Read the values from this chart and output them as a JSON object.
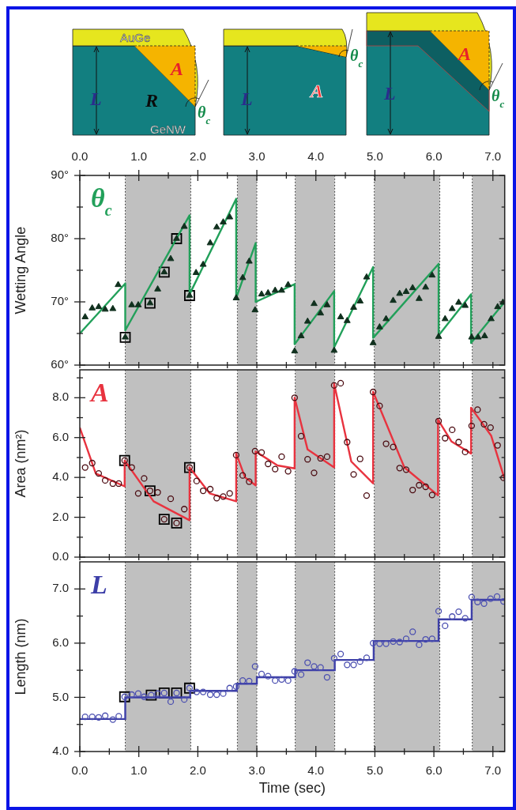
{
  "chart_data": [
    {
      "type": "other",
      "annotations": [
        "AuGe",
        "A",
        "R",
        "L",
        "GeNW",
        "θ$_{c}$",
        "A",
        "L",
        "θ$_{c}$",
        "A",
        "L",
        "θ$_{c}$"
      ]
    },
    {
      "type": "scatter",
      "ylabel": "Wetting Angle",
      "annotations": [
        "θ$_{c}$"
      ],
      "tick_labels": "y",
      "xlim": [
        0,
        7.2
      ],
      "xticks": [
        {
          "value": 0,
          "label": null
        },
        {
          "value": 0.5,
          "label": null
        },
        {
          "value": 1,
          "label": null
        },
        {
          "value": 1.5,
          "label": null
        },
        {
          "value": 2,
          "label": null
        },
        {
          "value": 2.5,
          "label": null
        },
        {
          "value": 3,
          "label": null
        },
        {
          "value": 3.5,
          "label": null
        },
        {
          "value": 4,
          "label": null
        },
        {
          "value": 4.5,
          "label": null
        },
        {
          "value": 5,
          "label": null
        },
        {
          "value": 5.5,
          "label": null
        },
        {
          "value": 6,
          "label": null
        },
        {
          "value": 6.5,
          "label": null
        },
        {
          "value": 7,
          "label": null
        }
      ],
      "x2lim": [
        0,
        7.2
      ],
      "x2ticks": [
        {
          "value": 0,
          "label": "0.0"
        },
        {
          "value": 0.5,
          "label": null
        },
        {
          "value": 1,
          "label": "1.0"
        },
        {
          "value": 1.5,
          "label": null
        },
        {
          "value": 2,
          "label": "2.0"
        },
        {
          "value": 2.5,
          "label": null
        },
        {
          "value": 3,
          "label": "3.0"
        },
        {
          "value": 3.5,
          "label": null
        },
        {
          "value": 4,
          "label": "4.0"
        },
        {
          "value": 4.5,
          "label": null
        },
        {
          "value": 5,
          "label": "5.0"
        },
        {
          "value": 5.5,
          "label": null
        },
        {
          "value": 6,
          "label": "6.0"
        },
        {
          "value": 6.5,
          "label": null
        },
        {
          "value": 7,
          "label": "7.0"
        }
      ],
      "ylim": [
        60,
        90
      ],
      "yticks": [
        {
          "value": 60,
          "label": "60°"
        },
        {
          "value": 65,
          "label": null
        },
        {
          "value": 70,
          "label": "70°"
        },
        {
          "value": 75,
          "label": null
        },
        {
          "value": 80,
          "label": "80°"
        },
        {
          "value": 85,
          "label": null
        },
        {
          "value": 90,
          "label": "90°"
        }
      ],
      "bands": [
        {
          "axis": "x",
          "from": 0.77,
          "to": 1.88,
          "color": "#c0c0c0"
        },
        {
          "axis": "x",
          "from": 2.67,
          "to": 3.0,
          "color": "#c0c0c0"
        },
        {
          "axis": "x",
          "from": 3.65,
          "to": 4.32,
          "color": "#c0c0c0"
        },
        {
          "axis": "x",
          "from": 4.99,
          "to": 6.1,
          "color": "#c0c0c0"
        },
        {
          "axis": "x",
          "from": 6.65,
          "to": 7.2,
          "color": "#c0c0c0"
        }
      ],
      "series": [
        {
          "type": "scatter",
          "marker": "triangle",
          "color": "#10301e",
          "x": [
            0.09,
            0.21,
            0.32,
            0.43,
            0.56,
            0.65,
            0.77,
            0.88,
            0.99,
            1.19,
            1.32,
            1.43,
            1.54,
            1.64,
            1.77,
            1.86,
            1.97,
            2.09,
            2.21,
            2.32,
            2.43,
            2.54,
            2.65,
            2.76,
            2.87,
            2.97,
            3.08,
            3.19,
            3.31,
            3.42,
            3.53,
            3.64,
            3.75,
            3.86,
            3.97,
            4.08,
            4.19,
            4.31,
            4.42,
            4.53,
            4.64,
            4.75,
            4.86,
            4.97,
            5.08,
            5.19,
            5.31,
            5.42,
            5.53,
            5.64,
            5.75,
            5.86,
            5.97,
            6.08,
            6.19,
            6.31,
            6.42,
            6.53,
            6.64,
            6.75,
            6.86,
            6.97,
            7.08,
            7.17
          ],
          "values": [
            67.6,
            69.0,
            69.2,
            68.8,
            68.9,
            72.7,
            64.4,
            69.5,
            69.5,
            69.8,
            72.0,
            74.7,
            76.8,
            80.0,
            81.9,
            71.0,
            74.6,
            75.9,
            79.3,
            81.8,
            82.6,
            83.4,
            70.6,
            73.8,
            76.4,
            68.7,
            71.2,
            71.4,
            71.8,
            71.8,
            72.7,
            62.2,
            64.6,
            66.9,
            69.7,
            68.2,
            69.5,
            62.3,
            67.6,
            67.0,
            69.1,
            70.1,
            73.9,
            63.5,
            66.0,
            67.3,
            70.2,
            71.3,
            71.6,
            72.2,
            70.5,
            72.3,
            74.2,
            64.5,
            67.3,
            68.9,
            69.9,
            69.4,
            64.4,
            64.4,
            64.6,
            67.3,
            69.2,
            69.9
          ]
        },
        {
          "type": "line",
          "marker": "none",
          "color": "#22a05a",
          "x": [
            0,
            0.77,
            0.77,
            1.86,
            1.86,
            2.65,
            2.65,
            2.98,
            2.98,
            3.64,
            3.64,
            4.31,
            4.31,
            4.97,
            4.97,
            6.08,
            6.08,
            6.63,
            6.63,
            7.2
          ],
          "values": [
            65.0,
            72.9,
            65.5,
            83.7,
            71.2,
            86.3,
            70.6,
            79.3,
            70.0,
            72.8,
            63.3,
            71.7,
            62.8,
            75.5,
            64.3,
            76.0,
            64.7,
            71.2,
            63.5,
            70.0
          ]
        },
        {
          "type": "scatter",
          "marker": "square",
          "color": "#000000",
          "x": [
            0.77,
            1.19,
            1.43,
            1.64,
            1.86
          ],
          "values": [
            64.4,
            69.8,
            74.7,
            80.0,
            71.0
          ]
        }
      ]
    },
    {
      "type": "scatter",
      "ylabel": "Area (nm²)",
      "annotations": [
        "A"
      ],
      "tick_labels": "y",
      "xlim": [
        0,
        7.2
      ],
      "xticks": [
        {
          "value": 0,
          "label": null
        },
        {
          "value": 0.5,
          "label": null
        },
        {
          "value": 1,
          "label": null
        },
        {
          "value": 1.5,
          "label": null
        },
        {
          "value": 2,
          "label": null
        },
        {
          "value": 2.5,
          "label": null
        },
        {
          "value": 3,
          "label": null
        },
        {
          "value": 3.5,
          "label": null
        },
        {
          "value": 4,
          "label": null
        },
        {
          "value": 4.5,
          "label": null
        },
        {
          "value": 5,
          "label": null
        },
        {
          "value": 5.5,
          "label": null
        },
        {
          "value": 6,
          "label": null
        },
        {
          "value": 6.5,
          "label": null
        },
        {
          "value": 7,
          "label": null
        }
      ],
      "ylim": [
        0,
        9.4
      ],
      "yticks": [
        {
          "value": 0,
          "label": "0.0"
        },
        {
          "value": 1,
          "label": null
        },
        {
          "value": 2,
          "label": "2.0"
        },
        {
          "value": 3,
          "label": null
        },
        {
          "value": 4,
          "label": "4.0"
        },
        {
          "value": 5,
          "label": null
        },
        {
          "value": 6,
          "label": "6.0"
        },
        {
          "value": 7,
          "label": null
        },
        {
          "value": 8,
          "label": "8.0"
        },
        {
          "value": 9,
          "label": null
        }
      ],
      "bands": [
        {
          "axis": "x",
          "from": 0.77,
          "to": 1.88,
          "color": "#c0c0c0"
        },
        {
          "axis": "x",
          "from": 2.67,
          "to": 3.0,
          "color": "#c0c0c0"
        },
        {
          "axis": "x",
          "from": 3.65,
          "to": 4.32,
          "color": "#c0c0c0"
        },
        {
          "axis": "x",
          "from": 4.99,
          "to": 6.1,
          "color": "#c0c0c0"
        },
        {
          "axis": "x",
          "from": 6.65,
          "to": 7.2,
          "color": "#c0c0c0"
        }
      ],
      "series": [
        {
          "type": "scatter",
          "marker": "circle",
          "color": "#4a0a10",
          "x": [
            0.09,
            0.21,
            0.32,
            0.43,
            0.56,
            0.66,
            0.76,
            0.88,
            0.99,
            1.09,
            1.19,
            1.32,
            1.43,
            1.54,
            1.64,
            1.77,
            1.86,
            1.98,
            2.09,
            2.21,
            2.32,
            2.43,
            2.54,
            2.65,
            2.76,
            2.87,
            2.97,
            3.08,
            3.19,
            3.31,
            3.42,
            3.53,
            3.64,
            3.75,
            3.86,
            3.97,
            4.08,
            4.19,
            4.31,
            4.42,
            4.53,
            4.64,
            4.75,
            4.86,
            4.97,
            5.08,
            5.19,
            5.31,
            5.42,
            5.53,
            5.64,
            5.75,
            5.86,
            5.97,
            6.08,
            6.19,
            6.31,
            6.42,
            6.53,
            6.64,
            6.74,
            6.85,
            6.96,
            7.08,
            7.18
          ],
          "values": [
            4.5,
            4.72,
            4.2,
            3.85,
            3.69,
            3.69,
            4.85,
            4.5,
            3.2,
            3.95,
            3.33,
            3.25,
            1.9,
            2.93,
            1.71,
            2.41,
            4.5,
            3.82,
            3.33,
            3.41,
            2.96,
            3.04,
            3.2,
            5.12,
            4.1,
            3.79,
            5.32,
            5.25,
            4.68,
            4.42,
            5.04,
            4.31,
            8.0,
            6.07,
            4.91,
            4.23,
            4.96,
            5.04,
            8.62,
            8.73,
            5.77,
            4.15,
            4.93,
            3.09,
            8.29,
            7.59,
            5.69,
            5.53,
            4.47,
            4.39,
            3.37,
            3.61,
            3.53,
            3.12,
            6.83,
            5.97,
            6.39,
            5.77,
            5.28,
            6.59,
            7.4,
            6.67,
            6.5,
            5.61,
            3.98
          ]
        },
        {
          "type": "line",
          "marker": "none",
          "color": "#e8333f",
          "x": [
            0,
            0.27,
            0.76,
            0.76,
            1.25,
            1.86,
            1.86,
            2.2,
            2.65,
            2.65,
            2.8,
            2.98,
            2.98,
            3.35,
            3.64,
            3.64,
            3.86,
            4.31,
            4.31,
            4.6,
            4.97,
            4.97,
            5.5,
            6.07,
            6.07,
            6.3,
            6.63,
            6.63,
            6.97,
            7.2
          ],
          "values": [
            6.5,
            4.2,
            3.55,
            4.85,
            2.8,
            1.85,
            4.5,
            3.2,
            2.8,
            5.2,
            4.0,
            3.6,
            5.3,
            4.6,
            4.45,
            8.0,
            5.4,
            4.5,
            8.7,
            4.8,
            3.7,
            8.3,
            4.5,
            3.1,
            6.9,
            5.8,
            5.2,
            7.5,
            6.1,
            3.9
          ]
        },
        {
          "type": "scatter",
          "marker": "square",
          "color": "#000000",
          "x": [
            0.76,
            1.19,
            1.43,
            1.64,
            1.86
          ],
          "values": [
            4.85,
            3.33,
            1.9,
            1.71,
            4.5
          ]
        }
      ]
    },
    {
      "type": "scatter",
      "ylabel": "Length (nm)",
      "xlabel": "Time (sec)",
      "annotations": [
        "L"
      ],
      "xlim": [
        0,
        7.2
      ],
      "xticks": [
        {
          "value": 0,
          "label": "0.0"
        },
        {
          "value": 0.5,
          "label": null
        },
        {
          "value": 1,
          "label": "1.0"
        },
        {
          "value": 1.5,
          "label": null
        },
        {
          "value": 2,
          "label": "2.0"
        },
        {
          "value": 2.5,
          "label": null
        },
        {
          "value": 3,
          "label": "3.0"
        },
        {
          "value": 3.5,
          "label": null
        },
        {
          "value": 4,
          "label": "4.0"
        },
        {
          "value": 4.5,
          "label": null
        },
        {
          "value": 5,
          "label": "5.0"
        },
        {
          "value": 5.5,
          "label": null
        },
        {
          "value": 6,
          "label": "6.0"
        },
        {
          "value": 6.5,
          "label": null
        },
        {
          "value": 7,
          "label": "7.0"
        }
      ],
      "ylim": [
        4,
        7.5
      ],
      "yticks": [
        {
          "value": 4,
          "label": "4.0"
        },
        {
          "value": 4.5,
          "label": null
        },
        {
          "value": 5,
          "label": "5.0"
        },
        {
          "value": 5.5,
          "label": null
        },
        {
          "value": 6,
          "label": "6.0"
        },
        {
          "value": 6.5,
          "label": null
        },
        {
          "value": 7,
          "label": "7.0"
        }
      ],
      "bands": [
        {
          "axis": "x",
          "from": 0.77,
          "to": 1.88,
          "color": "#c0c0c0"
        },
        {
          "axis": "x",
          "from": 2.67,
          "to": 3.0,
          "color": "#c0c0c0"
        },
        {
          "axis": "x",
          "from": 3.65,
          "to": 4.32,
          "color": "#c0c0c0"
        },
        {
          "axis": "x",
          "from": 4.99,
          "to": 6.1,
          "color": "#c0c0c0"
        },
        {
          "axis": "x",
          "from": 6.65,
          "to": 7.2,
          "color": "#c0c0c0"
        }
      ],
      "series": [
        {
          "type": "scatter",
          "marker": "circle",
          "color": "#4b4fb0",
          "x": [
            0.09,
            0.21,
            0.32,
            0.43,
            0.56,
            0.66,
            0.76,
            0.88,
            0.99,
            1.09,
            1.21,
            1.32,
            1.43,
            1.54,
            1.64,
            1.77,
            1.86,
            1.98,
            2.09,
            2.21,
            2.32,
            2.43,
            2.54,
            2.65,
            2.76,
            2.87,
            2.97,
            3.08,
            3.19,
            3.31,
            3.42,
            3.53,
            3.64,
            3.75,
            3.86,
            3.97,
            4.08,
            4.19,
            4.31,
            4.42,
            4.53,
            4.64,
            4.75,
            4.86,
            4.97,
            5.08,
            5.19,
            5.31,
            5.42,
            5.53,
            5.64,
            5.75,
            5.86,
            5.97,
            6.08,
            6.19,
            6.31,
            6.42,
            6.53,
            6.64,
            6.74,
            6.85,
            6.96,
            7.07,
            7.18
          ],
          "values": [
            4.64,
            4.64,
            4.63,
            4.66,
            4.59,
            4.65,
            5.01,
            5.05,
            5.07,
            5.01,
            5.04,
            5.07,
            5.08,
            4.92,
            5.08,
            4.96,
            5.17,
            5.1,
            5.1,
            5.05,
            5.05,
            5.07,
            5.17,
            5.2,
            5.31,
            5.3,
            5.57,
            5.43,
            5.39,
            5.31,
            5.33,
            5.31,
            5.48,
            5.42,
            5.64,
            5.57,
            5.55,
            5.37,
            5.72,
            5.8,
            5.6,
            5.6,
            5.66,
            5.73,
            6.0,
            5.99,
            5.99,
            6.03,
            6.02,
            6.08,
            6.21,
            5.97,
            6.07,
            6.08,
            6.59,
            6.32,
            6.49,
            6.58,
            6.46,
            6.85,
            6.76,
            6.73,
            6.82,
            6.86,
            6.77
          ]
        },
        {
          "type": "step",
          "marker": "none",
          "color": "#3d3fa8",
          "x": [
            0,
            0.77,
            1.87,
            2.66,
            3.0,
            3.65,
            4.32,
            4.98,
            6.08,
            6.64,
            7.2
          ],
          "values": [
            4.6,
            5.0,
            5.12,
            5.25,
            5.37,
            5.5,
            5.69,
            6.04,
            6.44,
            6.8,
            6.8
          ]
        },
        {
          "type": "scatter",
          "marker": "square",
          "color": "#000000",
          "x": [
            0.76,
            1.21,
            1.43,
            1.64,
            1.86
          ],
          "values": [
            5.01,
            5.04,
            5.08,
            5.08,
            5.17
          ]
        }
      ]
    }
  ]
}
